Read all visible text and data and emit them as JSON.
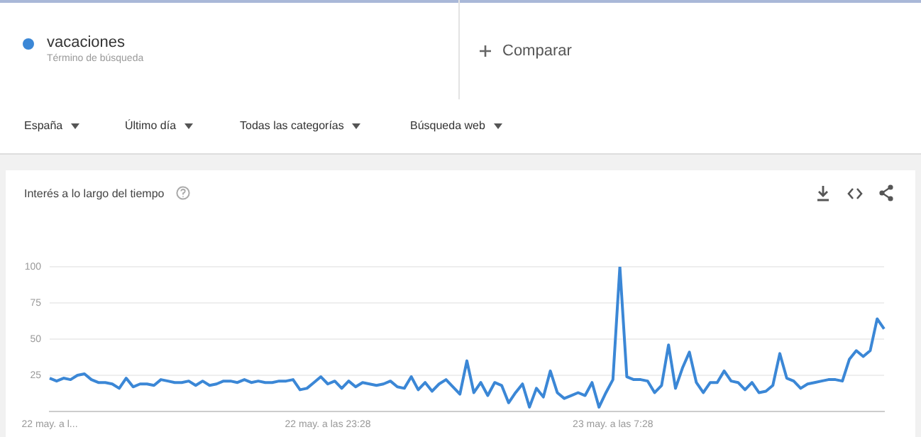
{
  "chart_data": {
    "type": "line",
    "title": "Interés a lo largo del tiempo",
    "categories": [
      "22 may. a l...",
      null,
      null,
      null,
      null,
      null,
      null,
      null,
      null,
      null,
      null,
      null,
      null,
      null,
      null,
      null,
      null,
      null,
      null,
      null,
      null,
      null,
      null,
      null,
      null,
      null,
      null,
      null,
      null,
      null,
      null,
      null,
      null,
      null,
      null,
      null,
      null,
      null,
      null,
      null,
      "22 may. a las 23:28",
      null,
      null,
      null,
      null,
      null,
      null,
      null,
      null,
      null,
      null,
      null,
      null,
      null,
      null,
      null,
      null,
      null,
      null,
      null,
      null,
      null,
      null,
      null,
      null,
      null,
      null,
      null,
      null,
      null,
      null,
      null,
      null,
      null,
      null,
      null,
      null,
      null,
      null,
      null,
      null,
      "23 may. a las 7:28",
      null,
      null,
      null,
      null,
      null,
      null,
      null,
      null,
      null,
      null,
      null,
      null,
      null,
      null,
      null,
      null,
      null,
      null,
      null,
      null,
      null,
      null,
      null,
      null,
      null,
      null,
      null,
      null,
      null,
      null,
      null,
      null,
      null,
      null,
      null,
      null,
      null,
      null,
      null
    ],
    "series": [
      {
        "name": "vacaciones",
        "color": "#3b87d6",
        "values": [
          23,
          21,
          23,
          22,
          25,
          26,
          22,
          20,
          20,
          19,
          16,
          23,
          17,
          19,
          19,
          18,
          22,
          21,
          20,
          20,
          21,
          18,
          21,
          18,
          19,
          21,
          21,
          20,
          22,
          20,
          21,
          20,
          20,
          21,
          21,
          22,
          15,
          16,
          20,
          24,
          19,
          21,
          16,
          21,
          17,
          20,
          19,
          18,
          19,
          21,
          17,
          16,
          24,
          15,
          20,
          14,
          19,
          22,
          17,
          12,
          35,
          13,
          20,
          11,
          20,
          18,
          6,
          13,
          19,
          3,
          16,
          10,
          28,
          13,
          9,
          11,
          13,
          11,
          20,
          3,
          13,
          22,
          100,
          24,
          22,
          22,
          21,
          13,
          18,
          46,
          16,
          30,
          41,
          20,
          13,
          20,
          20,
          28,
          21,
          20,
          15,
          20,
          13,
          14,
          18,
          40,
          23,
          21,
          16,
          19,
          20,
          21,
          22,
          22,
          21,
          36,
          42,
          38,
          42,
          64,
          57
        ]
      }
    ],
    "ylim": [
      0,
      100
    ],
    "yticks": [
      25,
      50,
      75,
      100
    ],
    "grid": "y",
    "legend": "top left",
    "marker": "none",
    "line_style": "solid",
    "annotations": [
      "Término de búsqueda",
      "Comparar",
      "España",
      "Último día",
      "Todas las categorías",
      "Búsqueda web"
    ]
  }
}
